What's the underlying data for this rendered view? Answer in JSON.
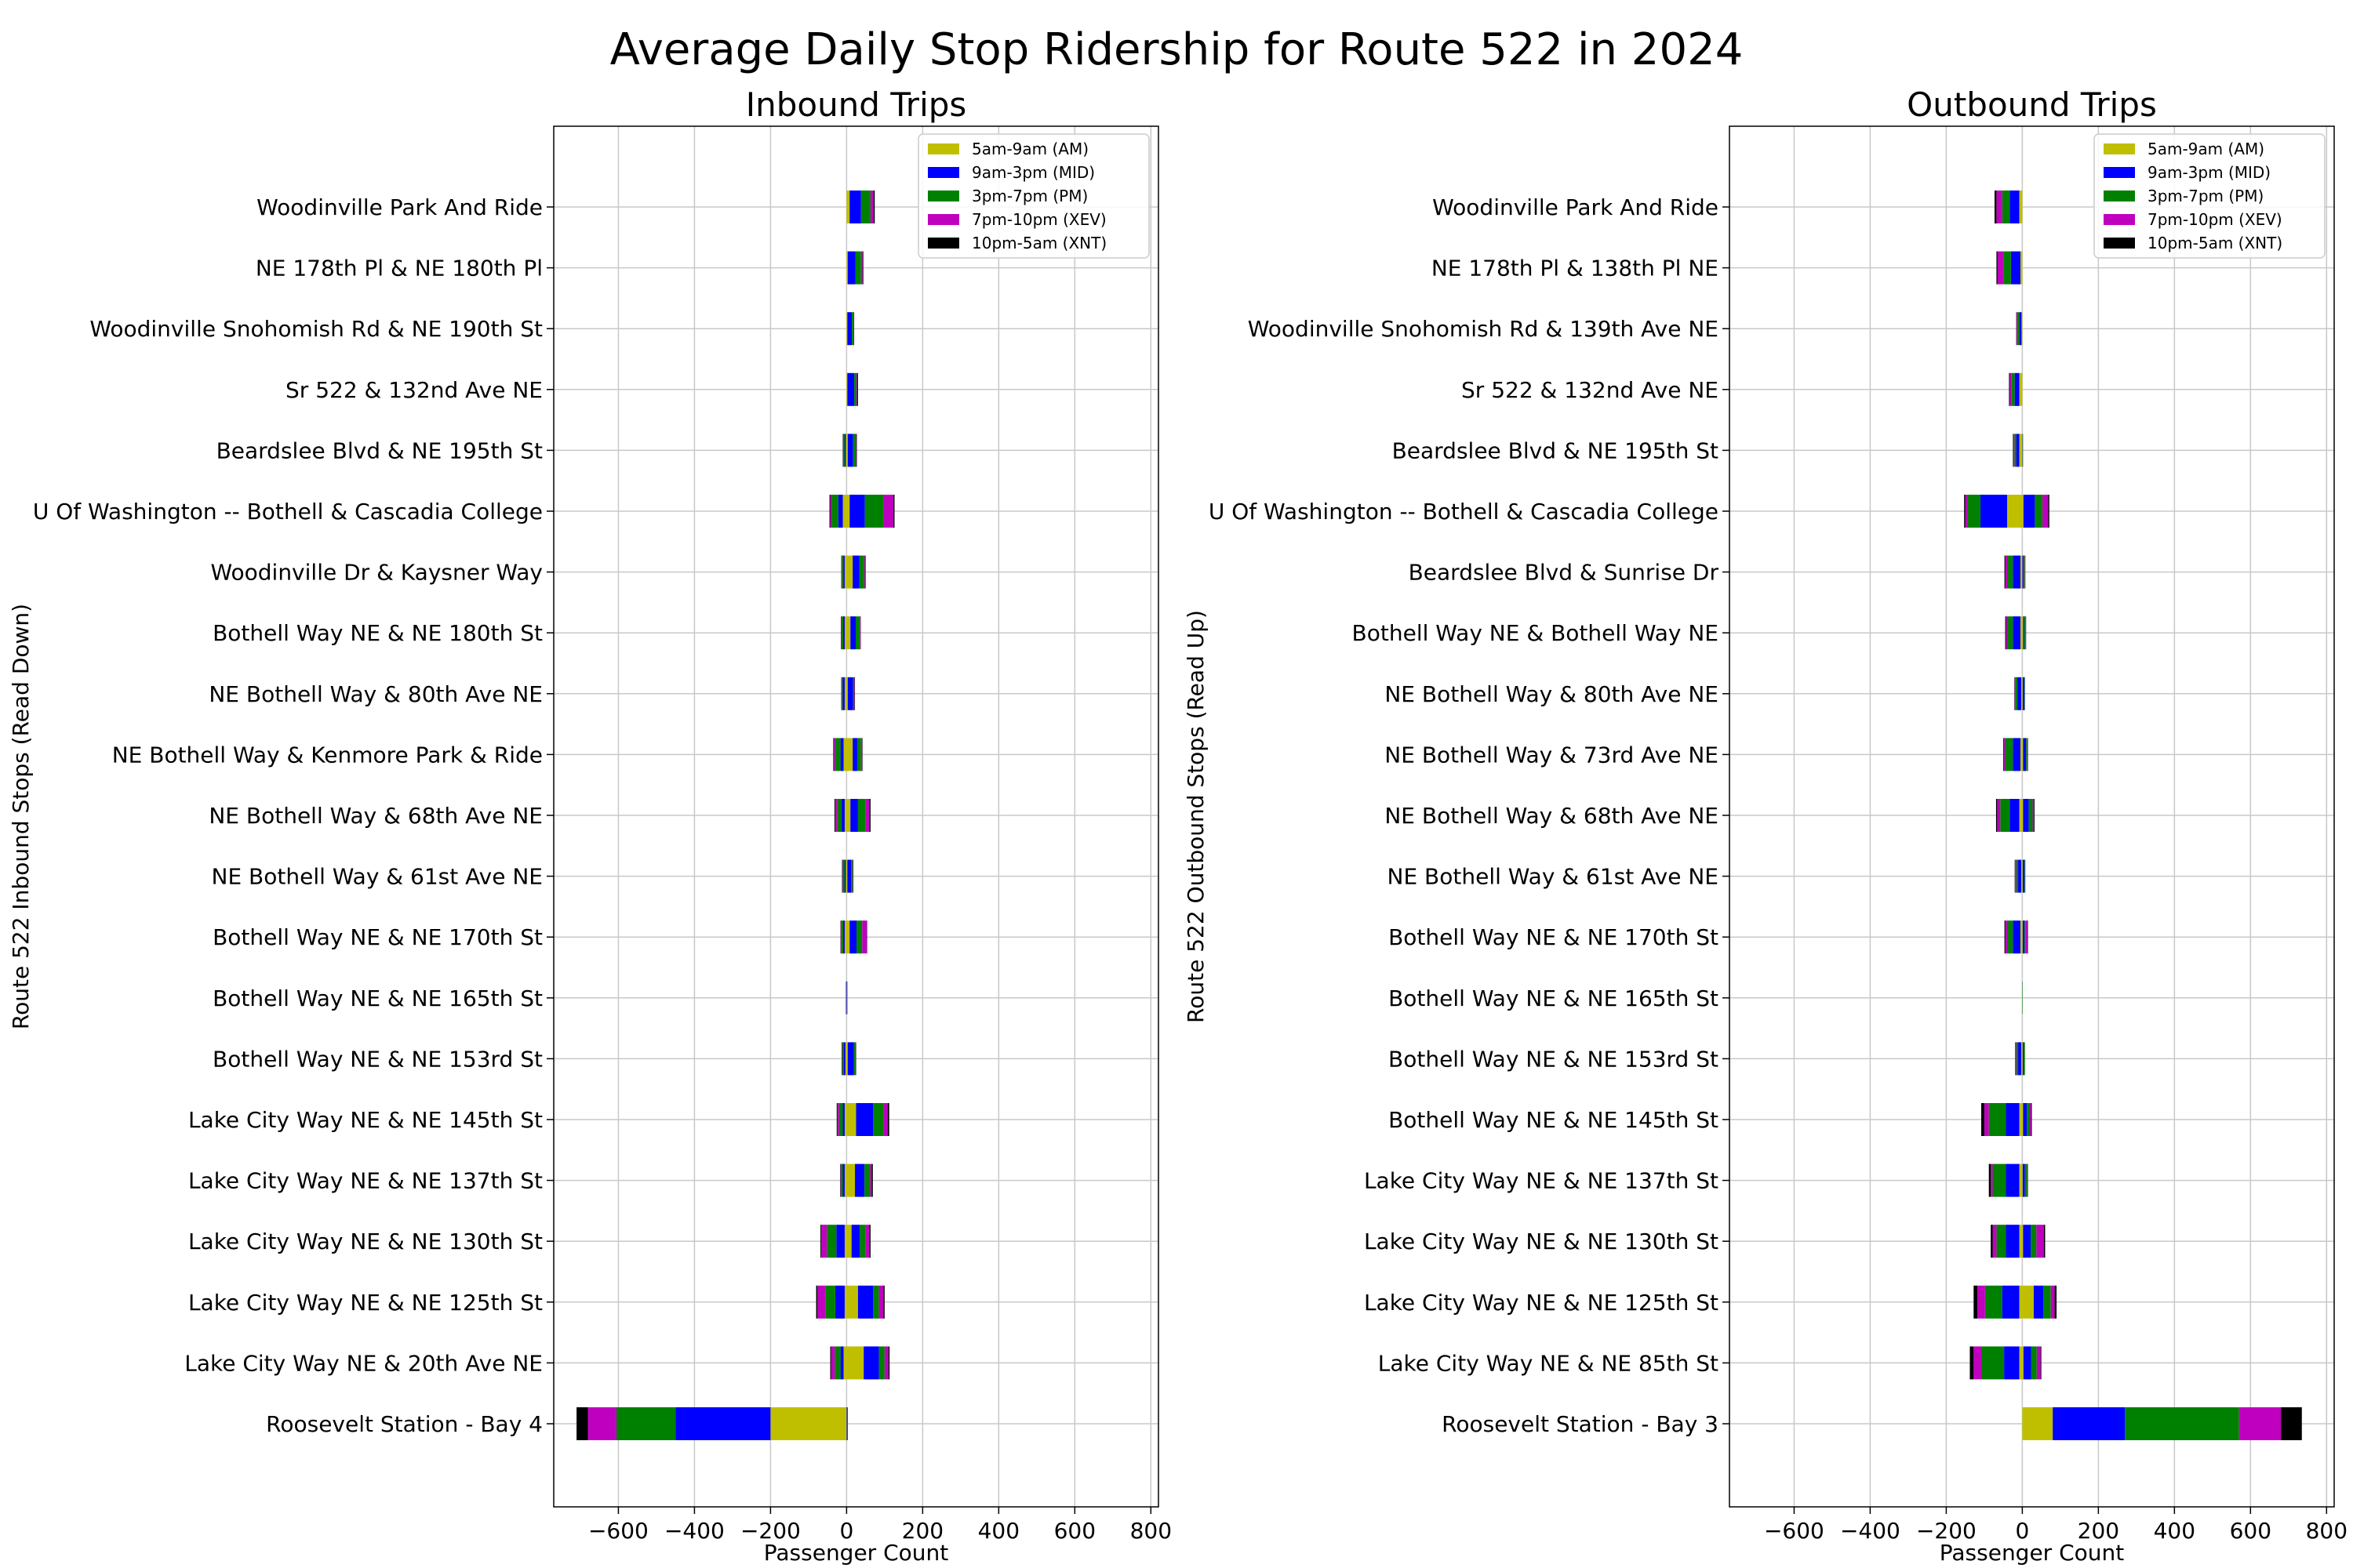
{
  "figure": {
    "title": "Average Daily Stop Ridership for Route 522 in 2024"
  },
  "chart_data": [
    {
      "type": "bar",
      "orientation": "horizontal",
      "stacked": "diverging",
      "title": "Inbound Trips",
      "xlabel": "Passenger Count",
      "ylabel": "Route 522 Inbound Stops (Read Down)",
      "xlim": [
        -770,
        820
      ],
      "xticks": [
        -600,
        -400,
        -200,
        0,
        200,
        400,
        600,
        800
      ],
      "xtick_labels": [
        "−600",
        "−400",
        "−200",
        "0",
        "200",
        "400",
        "600",
        "800"
      ],
      "grid": true,
      "legend_position": "top-right",
      "segment_order": [
        "AM",
        "MID",
        "PM",
        "XEV",
        "XNT"
      ],
      "categories": [
        "Woodinville Park And Ride",
        "NE 178th Pl & NE 180th Pl",
        "Woodinville Snohomish Rd & NE 190th St",
        "Sr 522 & 132nd Ave NE",
        "Beardslee Blvd & NE 195th St",
        "U Of Washington -- Bothell & Cascadia College",
        "Woodinville Dr & Kaysner Way",
        "Bothell Way NE & NE 180th St",
        "NE Bothell Way & 80th Ave NE",
        "NE Bothell Way & Kenmore Park & Ride",
        "NE Bothell Way & 68th Ave NE",
        "NE Bothell Way & 61st Ave NE",
        "Bothell Way NE & NE 170th St",
        "Bothell Way NE & NE 165th St",
        "Bothell Way NE & NE 153rd St",
        "Lake City Way NE & NE 145th St",
        "Lake City Way NE & NE 137th St",
        "Lake City Way NE & NE 130th St",
        "Lake City Way NE & NE 125th St",
        "Lake City Way NE & 20th Ave NE",
        "Roosevelt Station - Bay 4"
      ],
      "series": [
        {
          "name": "5am-9am (AM)",
          "color": "#bfbf00",
          "boardings": [
            8,
            3,
            2,
            2,
            3,
            8,
            16,
            10,
            3,
            16,
            10,
            2,
            8,
            0,
            3,
            25,
            22,
            13,
            30,
            45,
            0
          ],
          "alightings": [
            0,
            0,
            0,
            0,
            2,
            10,
            5,
            5,
            5,
            8,
            5,
            2,
            5,
            1,
            3,
            5,
            5,
            5,
            5,
            8,
            200
          ]
        },
        {
          "name": "9am-3pm (MID)",
          "color": "#0000ff",
          "boardings": [
            30,
            20,
            12,
            18,
            14,
            40,
            18,
            14,
            14,
            12,
            20,
            10,
            18,
            2,
            16,
            45,
            25,
            22,
            40,
            40,
            3
          ],
          "alightings": [
            0,
            0,
            0,
            0,
            3,
            12,
            3,
            4,
            5,
            8,
            8,
            3,
            4,
            1,
            4,
            5,
            5,
            22,
            25,
            8,
            250
          ]
        },
        {
          "name": "3pm-7pm (PM)",
          "color": "#008000",
          "boardings": [
            25,
            15,
            4,
            6,
            8,
            50,
            12,
            10,
            3,
            10,
            20,
            4,
            15,
            0,
            4,
            28,
            15,
            15,
            15,
            15,
            0
          ],
          "alightings": [
            0,
            0,
            0,
            0,
            3,
            18,
            4,
            4,
            2,
            14,
            12,
            5,
            4,
            0,
            4,
            10,
            5,
            25,
            25,
            15,
            155
          ]
        },
        {
          "name": "7pm-10pm (XEV)",
          "color": "#bf00bf",
          "boardings": [
            8,
            4,
            1,
            2,
            1,
            25,
            2,
            2,
            1,
            3,
            10,
            1,
            12,
            0,
            1,
            10,
            4,
            10,
            12,
            10,
            0
          ],
          "alightings": [
            0,
            0,
            0,
            0,
            1,
            3,
            1,
            1,
            1,
            3,
            5,
            1,
            2,
            0,
            1,
            4,
            1,
            15,
            22,
            10,
            75
          ]
        },
        {
          "name": "10pm-5am (XNT)",
          "color": "#000000",
          "boardings": [
            3,
            2,
            1,
            2,
            1,
            3,
            2,
            1,
            1,
            1,
            3,
            1,
            1,
            0,
            1,
            4,
            3,
            3,
            3,
            3,
            0
          ],
          "alightings": [
            0,
            0,
            0,
            0,
            1,
            2,
            1,
            1,
            1,
            2,
            2,
            1,
            1,
            0,
            1,
            2,
            1,
            2,
            3,
            2,
            30
          ]
        }
      ]
    },
    {
      "type": "bar",
      "orientation": "horizontal",
      "stacked": "diverging",
      "title": "Outbound Trips",
      "xlabel": "Passenger Count",
      "ylabel": "Route 522 Outbound Stops (Read Up)",
      "xlim": [
        -770,
        820
      ],
      "xticks": [
        -600,
        -400,
        -200,
        0,
        200,
        400,
        600,
        800
      ],
      "xtick_labels": [
        "−600",
        "−400",
        "−200",
        "0",
        "200",
        "400",
        "600",
        "800"
      ],
      "grid": true,
      "legend_position": "top-right",
      "segment_order": [
        "AM",
        "MID",
        "PM",
        "XEV",
        "XNT"
      ],
      "categories": [
        "Woodinville Park And Ride",
        "NE 178th Pl & 138th Pl NE",
        "Woodinville Snohomish Rd & 139th Ave NE",
        "Sr 522 & 132nd Ave NE",
        "Beardslee Blvd & NE 195th St",
        "U Of Washington -- Bothell & Cascadia College",
        "Beardslee Blvd & Sunrise Dr",
        "Bothell Way NE & Bothell Way NE",
        "NE Bothell Way & 80th Ave NE",
        "NE Bothell Way & 73rd Ave NE",
        "NE Bothell Way & 68th Ave NE",
        "NE Bothell Way & 61st Ave NE",
        "Bothell Way NE & NE 170th St",
        "Bothell Way NE & NE 165th St",
        "Bothell Way NE & NE 153rd St",
        "Bothell Way NE & NE 145th St",
        "Lake City Way NE & NE 137th St",
        "Lake City Way NE & NE 130th St",
        "Lake City Way NE & NE 125th St",
        "Lake City Way NE & NE 85th St",
        "Roosevelt Station - Bay 3"
      ],
      "series": [
        {
          "name": "5am-9am (AM)",
          "color": "#bfbf00",
          "boardings": [
            0,
            0,
            0,
            0,
            0,
            3,
            0,
            2,
            1,
            2,
            2,
            1,
            1,
            0,
            1,
            2,
            1,
            2,
            30,
            3,
            80
          ],
          "alightings": [
            8,
            5,
            2,
            8,
            8,
            40,
            5,
            5,
            3,
            5,
            8,
            3,
            5,
            0,
            3,
            8,
            8,
            8,
            8,
            8,
            0
          ]
        },
        {
          "name": "9am-3pm (MID)",
          "color": "#0000ff",
          "boardings": [
            0,
            0,
            0,
            0,
            1,
            30,
            3,
            3,
            5,
            8,
            15,
            5,
            5,
            0,
            3,
            10,
            6,
            20,
            25,
            20,
            190
          ]
        },
        {
          "name": "3pm-7pm (PM)",
          "color": "#008000",
          "boardings": [
            0,
            0,
            0,
            0,
            1,
            20,
            3,
            3,
            1,
            3,
            10,
            2,
            3,
            1,
            3,
            8,
            6,
            15,
            20,
            15,
            300
          ]
        },
        {
          "name": "7pm-10pm (XEV)",
          "color": "#bf00bf",
          "boardings": [
            0,
            0,
            0,
            0,
            0,
            15,
            1,
            1,
            0,
            1,
            3,
            0,
            5,
            0,
            0,
            3,
            1,
            20,
            10,
            10,
            110
          ]
        },
        {
          "name": "10pm-5am (XNT)",
          "color": "#000000",
          "boardings": [
            0,
            0,
            0,
            0,
            0,
            3,
            1,
            1,
            0,
            1,
            2,
            0,
            1,
            0,
            0,
            2,
            1,
            3,
            5,
            2,
            55
          ]
        }
      ],
      "alightings_remaining": [
        [
          25,
          25,
          5,
          12,
          8,
          70,
          20,
          20,
          10,
          20,
          25,
          8,
          20,
          0,
          8,
          35,
          35,
          35,
          45,
          40,
          0
        ],
        [
          20,
          20,
          5,
          8,
          5,
          35,
          15,
          15,
          5,
          20,
          25,
          5,
          15,
          0,
          5,
          45,
          35,
          25,
          45,
          60,
          0
        ],
        [
          15,
          15,
          3,
          5,
          3,
          5,
          5,
          3,
          2,
          3,
          8,
          3,
          5,
          0,
          2,
          12,
          5,
          10,
          20,
          20,
          0
        ],
        [
          5,
          3,
          1,
          2,
          1,
          3,
          2,
          2,
          1,
          2,
          3,
          1,
          2,
          0,
          1,
          8,
          5,
          5,
          10,
          10,
          0
        ]
      ]
    }
  ]
}
